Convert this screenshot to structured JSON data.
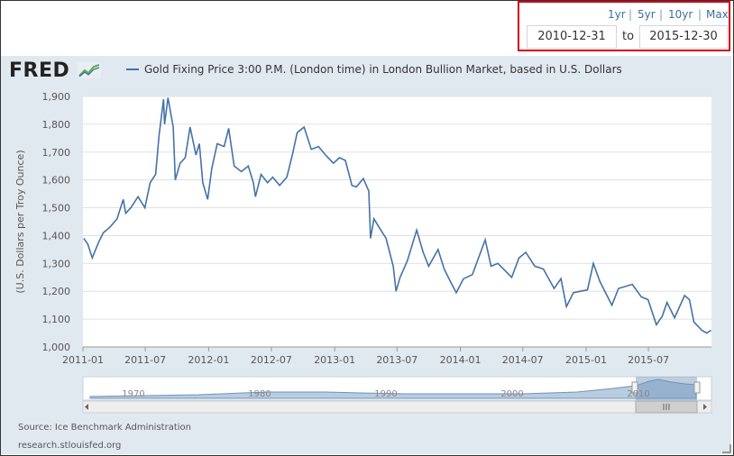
{
  "range": {
    "quick_links": [
      "1yr",
      "5yr",
      "10yr",
      "Max"
    ],
    "start": "2010-12-31",
    "to_label": "to",
    "end": "2015-12-30",
    "highlight_color": "#d0021b"
  },
  "logo_text": "FRED",
  "source": "Source: Ice Benchmark Administration",
  "site": "research.stlouisfed.org",
  "navigator": {
    "labels": [
      "1970",
      "1980",
      "1990",
      "2000",
      "2010"
    ],
    "scroll_icon": "grip-icon"
  },
  "colors": {
    "line": "#4572a7",
    "panel": "#e1e9f0",
    "plot": "#ffffff"
  },
  "chart_data": {
    "type": "line",
    "title": "",
    "series": [
      {
        "name": "Gold Fixing Price 3:00 P.M. (London time) in London Bullion Market, based in U.S. Dollars",
        "points": [
          [
            "2011-01-03",
            1390
          ],
          [
            "2011-01-15",
            1370
          ],
          [
            "2011-01-28",
            1320
          ],
          [
            "2011-02-15",
            1375
          ],
          [
            "2011-03-01",
            1410
          ],
          [
            "2011-03-20",
            1430
          ],
          [
            "2011-04-10",
            1460
          ],
          [
            "2011-04-28",
            1530
          ],
          [
            "2011-05-05",
            1480
          ],
          [
            "2011-05-20",
            1500
          ],
          [
            "2011-06-10",
            1540
          ],
          [
            "2011-06-30",
            1500
          ],
          [
            "2011-07-15",
            1590
          ],
          [
            "2011-07-31",
            1620
          ],
          [
            "2011-08-10",
            1760
          ],
          [
            "2011-08-23",
            1890
          ],
          [
            "2011-08-26",
            1800
          ],
          [
            "2011-09-05",
            1895
          ],
          [
            "2011-09-20",
            1790
          ],
          [
            "2011-09-26",
            1600
          ],
          [
            "2011-10-10",
            1660
          ],
          [
            "2011-10-25",
            1680
          ],
          [
            "2011-11-08",
            1790
          ],
          [
            "2011-11-25",
            1690
          ],
          [
            "2011-12-05",
            1730
          ],
          [
            "2011-12-15",
            1590
          ],
          [
            "2011-12-29",
            1530
          ],
          [
            "2012-01-10",
            1640
          ],
          [
            "2012-01-26",
            1730
          ],
          [
            "2012-02-15",
            1720
          ],
          [
            "2012-02-28",
            1785
          ],
          [
            "2012-03-15",
            1650
          ],
          [
            "2012-04-05",
            1630
          ],
          [
            "2012-04-25",
            1650
          ],
          [
            "2012-05-10",
            1590
          ],
          [
            "2012-05-16",
            1540
          ],
          [
            "2012-06-01",
            1620
          ],
          [
            "2012-06-20",
            1590
          ],
          [
            "2012-07-05",
            1610
          ],
          [
            "2012-07-25",
            1580
          ],
          [
            "2012-08-15",
            1610
          ],
          [
            "2012-08-31",
            1690
          ],
          [
            "2012-09-14",
            1770
          ],
          [
            "2012-10-04",
            1790
          ],
          [
            "2012-10-25",
            1710
          ],
          [
            "2012-11-15",
            1720
          ],
          [
            "2012-12-05",
            1690
          ],
          [
            "2012-12-28",
            1660
          ],
          [
            "2013-01-15",
            1680
          ],
          [
            "2013-02-01",
            1670
          ],
          [
            "2013-02-20",
            1580
          ],
          [
            "2013-03-05",
            1575
          ],
          [
            "2013-03-25",
            1605
          ],
          [
            "2013-04-10",
            1560
          ],
          [
            "2013-04-15",
            1390
          ],
          [
            "2013-04-25",
            1460
          ],
          [
            "2013-05-10",
            1430
          ],
          [
            "2013-05-30",
            1390
          ],
          [
            "2013-06-20",
            1290
          ],
          [
            "2013-06-28",
            1200
          ],
          [
            "2013-07-10",
            1250
          ],
          [
            "2013-07-31",
            1310
          ],
          [
            "2013-08-27",
            1420
          ],
          [
            "2013-09-15",
            1340
          ],
          [
            "2013-10-01",
            1290
          ],
          [
            "2013-10-28",
            1350
          ],
          [
            "2013-11-15",
            1280
          ],
          [
            "2013-12-05",
            1230
          ],
          [
            "2013-12-20",
            1195
          ],
          [
            "2014-01-10",
            1245
          ],
          [
            "2014-02-05",
            1260
          ],
          [
            "2014-03-14",
            1385
          ],
          [
            "2014-03-31",
            1290
          ],
          [
            "2014-04-20",
            1300
          ],
          [
            "2014-05-30",
            1250
          ],
          [
            "2014-06-20",
            1320
          ],
          [
            "2014-07-10",
            1340
          ],
          [
            "2014-08-05",
            1290
          ],
          [
            "2014-08-30",
            1280
          ],
          [
            "2014-09-30",
            1210
          ],
          [
            "2014-10-20",
            1245
          ],
          [
            "2014-11-05",
            1145
          ],
          [
            "2014-11-25",
            1195
          ],
          [
            "2014-12-15",
            1200
          ],
          [
            "2015-01-05",
            1205
          ],
          [
            "2015-01-22",
            1300
          ],
          [
            "2015-02-10",
            1235
          ],
          [
            "2015-03-17",
            1150
          ],
          [
            "2015-04-05",
            1210
          ],
          [
            "2015-05-15",
            1225
          ],
          [
            "2015-06-10",
            1180
          ],
          [
            "2015-06-30",
            1170
          ],
          [
            "2015-07-24",
            1080
          ],
          [
            "2015-08-10",
            1110
          ],
          [
            "2015-08-24",
            1160
          ],
          [
            "2015-09-15",
            1105
          ],
          [
            "2015-10-14",
            1185
          ],
          [
            "2015-10-28",
            1170
          ],
          [
            "2015-11-10",
            1090
          ],
          [
            "2015-12-03",
            1060
          ],
          [
            "2015-12-17",
            1050
          ],
          [
            "2015-12-30",
            1060
          ]
        ]
      }
    ],
    "xlabel": "",
    "ylabel": "(U.S. Dollars per Troy Ounce)",
    "ylim": [
      1000,
      1900
    ],
    "yticks": [
      1000,
      1100,
      1200,
      1300,
      1400,
      1500,
      1600,
      1700,
      1800,
      1900
    ],
    "ytick_labels": [
      "1,000",
      "1,100",
      "1,200",
      "1,300",
      "1,400",
      "1,500",
      "1,600",
      "1,700",
      "1,800",
      "1,900"
    ],
    "xrange": [
      "2011-01-01",
      "2015-12-31"
    ],
    "xticks": [
      "2011-01",
      "2011-07",
      "2012-01",
      "2012-07",
      "2013-01",
      "2013-07",
      "2014-01",
      "2014-07",
      "2015-01",
      "2015-07"
    ],
    "grid": "horizontal",
    "legend": "top-left"
  }
}
